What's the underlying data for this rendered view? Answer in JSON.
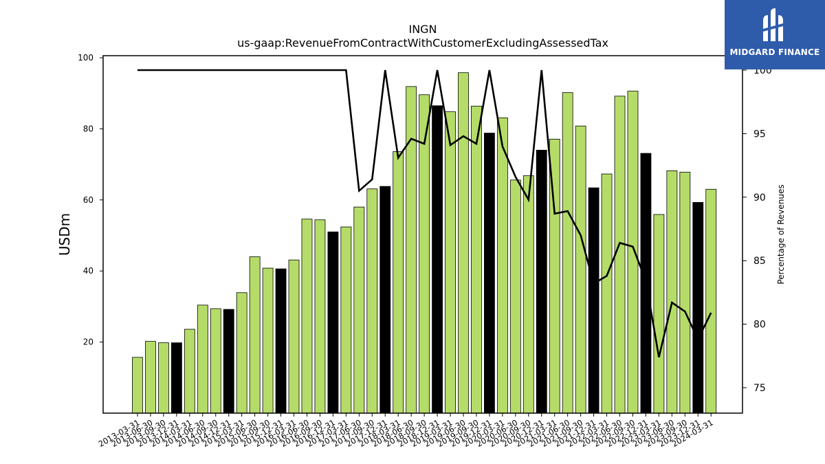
{
  "logo": {
    "text": "MIDGARD FINANCE",
    "icon": "midgard-logo-icon",
    "background": "#2f5bab"
  },
  "chart_data": {
    "type": "bar",
    "title": "INGN",
    "subtitle": "us-gaap:RevenueFromContractWithCustomerExcludingAssessedTax",
    "ylabel": "USDm",
    "y2label": "Percentage of Revenues",
    "ylim": [
      0,
      100
    ],
    "y2lim": [
      73,
      100
    ],
    "yticks": [
      20,
      40,
      60,
      80,
      100
    ],
    "y2ticks": [
      75,
      80,
      85,
      90,
      95,
      100
    ],
    "bar_colors": {
      "quarter": "#b5dc69",
      "fiscal_q4": "#000000"
    },
    "line_color": "#000000",
    "grid": false,
    "categories": [
      "2013-03-31",
      "2013-06-30",
      "2013-09-30",
      "2013-12-31",
      "2014-03-31",
      "2014-06-30",
      "2014-09-30",
      "2014-12-31",
      "2015-03-31",
      "2015-06-30",
      "2015-09-30",
      "2015-12-31",
      "2016-03-31",
      "2016-06-30",
      "2016-09-30",
      "2016-12-31",
      "2017-03-31",
      "2017-06-30",
      "2017-09-30",
      "2017-12-31",
      "2018-03-31",
      "2018-06-30",
      "2018-09-30",
      "2018-12-31",
      "2019-03-31",
      "2019-06-30",
      "2019-09-30",
      "2019-12-31",
      "2020-03-31",
      "2020-06-30",
      "2020-09-30",
      "2020-12-31",
      "2021-03-31",
      "2021-06-30",
      "2021-09-30",
      "2021-12-31",
      "2022-03-31",
      "2022-06-30",
      "2022-09-30",
      "2022-12-31",
      "2023-03-31",
      "2023-06-30",
      "2023-09-30",
      "2023-12-31",
      "2024-03-31"
    ],
    "values": [
      15.7,
      20.2,
      19.8,
      19.8,
      23.6,
      30.4,
      29.4,
      29.2,
      33.9,
      44.0,
      40.8,
      40.6,
      43.1,
      54.6,
      54.4,
      51.0,
      52.4,
      58.0,
      63.1,
      63.8,
      73.6,
      91.9,
      89.6,
      86.5,
      84.8,
      95.8,
      86.4,
      78.8,
      83.1,
      65.6,
      66.8,
      74.0,
      77.1,
      90.2,
      80.8,
      63.4,
      67.3,
      89.2,
      90.6,
      73.1,
      55.9,
      68.2,
      67.8,
      59.3,
      63.0
    ],
    "fiscal_q4": [
      false,
      false,
      false,
      true,
      false,
      false,
      false,
      true,
      false,
      false,
      false,
      true,
      false,
      false,
      false,
      true,
      false,
      false,
      false,
      true,
      false,
      false,
      false,
      true,
      false,
      false,
      false,
      true,
      false,
      false,
      false,
      true,
      false,
      false,
      false,
      true,
      false,
      false,
      false,
      true,
      false,
      false,
      false,
      true,
      false
    ],
    "line_series": {
      "name": "",
      "values": [
        100,
        100,
        100,
        100,
        100,
        100,
        100,
        100,
        100,
        100,
        100,
        100,
        100,
        100,
        100,
        100,
        100,
        90.5,
        91.4,
        100,
        93.1,
        94.6,
        94.2,
        100,
        94.1,
        94.8,
        94.2,
        100,
        94.0,
        91.6,
        89.8,
        100,
        88.7,
        88.9,
        87.0,
        83.2,
        83.8,
        86.4,
        86.1,
        83.4,
        77.4,
        81.7,
        81.0,
        78.8,
        80.9
      ]
    }
  }
}
